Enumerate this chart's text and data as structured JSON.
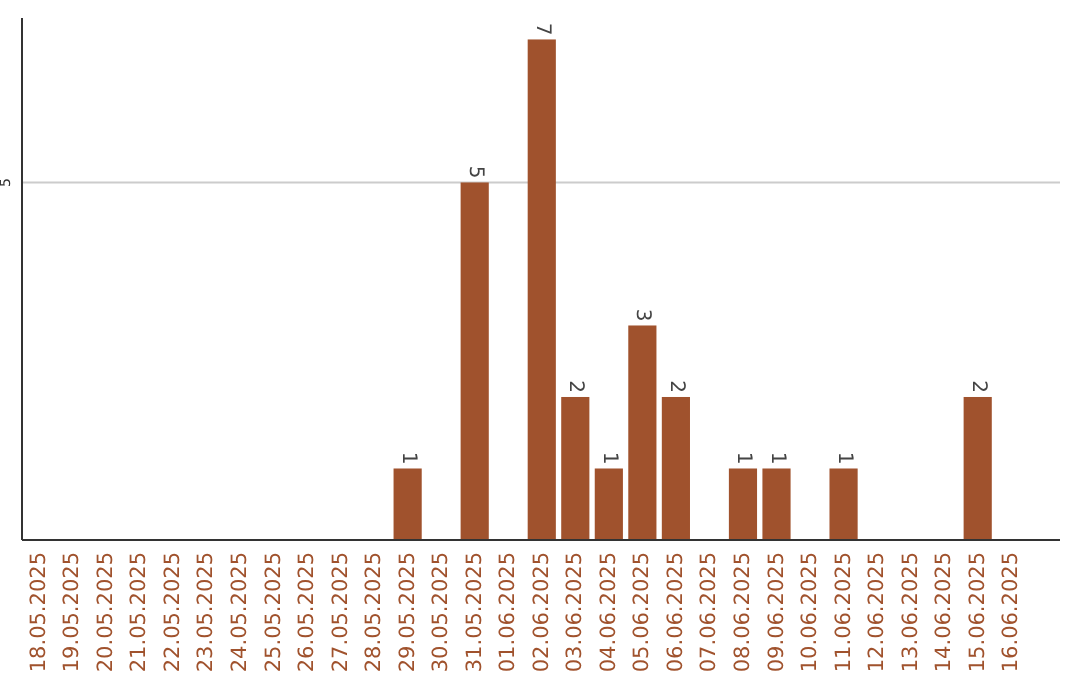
{
  "chart_data": {
    "type": "bar",
    "categories": [
      "18.05.2025",
      "19.05.2025",
      "20.05.2025",
      "21.05.2025",
      "22.05.2025",
      "23.05.2025",
      "24.05.2025",
      "25.05.2025",
      "26.05.2025",
      "27.05.2025",
      "28.05.2025",
      "29.05.2025",
      "30.05.2025",
      "31.05.2025",
      "01.06.2025",
      "02.06.2025",
      "03.06.2025",
      "04.06.2025",
      "05.06.2025",
      "06.06.2025",
      "07.06.2025",
      "08.06.2025",
      "09.06.2025",
      "10.06.2025",
      "11.06.2025",
      "12.06.2025",
      "13.06.2025",
      "14.06.2025",
      "15.06.2025",
      "16.06.2025"
    ],
    "values": [
      0,
      0,
      0,
      0,
      0,
      0,
      0,
      0,
      0,
      0,
      0,
      1,
      0,
      5,
      0,
      7,
      2,
      1,
      3,
      2,
      0,
      1,
      1,
      0,
      1,
      0,
      0,
      0,
      2,
      0
    ],
    "value_labels": [
      null,
      null,
      null,
      null,
      null,
      null,
      null,
      null,
      null,
      null,
      null,
      "1",
      null,
      "5",
      null,
      "7",
      "2",
      "1",
      "3",
      "2",
      null,
      "1",
      "1",
      null,
      "1",
      null,
      null,
      null,
      "2",
      null
    ],
    "color": "#a0522d",
    "ylim": [
      0,
      7.3
    ],
    "yticks": [
      5
    ],
    "grid": "y"
  }
}
